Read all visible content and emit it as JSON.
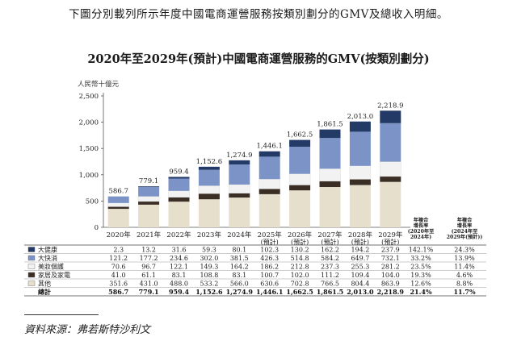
{
  "intro_text": "下圖分別載列所示年度中國電商運營服務按類別劃分的GMV及總收入明細。",
  "source_text": "資料來源：弗若斯特沙利文",
  "chart_data": {
    "type": "bar",
    "stacked": true,
    "title": "2020年至2029年(預計)中國電商運營服務的GMV(按類別劃分)",
    "ylabel": "人民幣十億元",
    "ylim": [
      0,
      2500
    ],
    "yticks": [
      "0",
      "500",
      "1,000",
      "1,500",
      "2,000",
      "2,500"
    ],
    "categories": [
      "2020年",
      "2021年",
      "2022年",
      "2023年",
      "2024年",
      "2025年",
      "2026年",
      "2027年",
      "2028年",
      "2029年"
    ],
    "category_sublabels": [
      "",
      "",
      "",
      "",
      "",
      "(預計)",
      "(預計)",
      "(預計)",
      "(預計)",
      "(預計)"
    ],
    "series": [
      {
        "name": "其他",
        "color": "#e6dfcc",
        "values": [
          351.6,
          431.0,
          488.0,
          533.2,
          566.0,
          630.6,
          702.8,
          766.5,
          804.4,
          863.9
        ],
        "labels": [
          "351.6",
          "431.0",
          "488.0",
          "533.2",
          "566.0",
          "630.6",
          "702.8",
          "766.5",
          "804.4",
          "863.9"
        ],
        "cagr_2020_2024": "12.6%",
        "cagr_2024_2029": "8.8%"
      },
      {
        "name": "家居及家電",
        "color": "#3b2f25",
        "values": [
          41.0,
          61.1,
          83.1,
          108.8,
          83.1,
          100.7,
          102.0,
          111.2,
          109.4,
          104.0
        ],
        "labels": [
          "41.0",
          "61.1",
          "83.1",
          "108.8",
          "83.1",
          "100.7",
          "102.0",
          "111.2",
          "109.4",
          "104.0"
        ],
        "cagr_2020_2024": "19.3%",
        "cagr_2024_2029": "4.6%"
      },
      {
        "name": "美妝個護",
        "color": "#f2f2f2",
        "values": [
          70.6,
          96.7,
          122.1,
          149.3,
          164.2,
          186.2,
          212.8,
          237.3,
          255.3,
          281.2
        ],
        "labels": [
          "70.6",
          "96.7",
          "122.1",
          "149.3",
          "164.2",
          "186.2",
          "212.8",
          "237.3",
          "255.3",
          "281.2"
        ],
        "cagr_2020_2024": "23.5%",
        "cagr_2024_2029": "11.4%"
      },
      {
        "name": "大快消",
        "color": "#7b93c6",
        "values": [
          121.2,
          177.2,
          234.6,
          302.0,
          381.5,
          426.3,
          514.8,
          584.2,
          649.7,
          732.1
        ],
        "labels": [
          "121.2",
          "177.2",
          "234.6",
          "302.0",
          "381.5",
          "426.3",
          "514.8",
          "584.2",
          "649.7",
          "732.1"
        ],
        "cagr_2020_2024": "33.2%",
        "cagr_2024_2029": "13.9%"
      },
      {
        "name": "大健康",
        "color": "#243a66",
        "values": [
          2.3,
          13.2,
          31.6,
          59.3,
          80.1,
          102.3,
          130.2,
          162.2,
          194.2,
          237.9
        ],
        "labels": [
          "2.3",
          "13.2",
          "31.6",
          "59.3",
          "80.1",
          "102.3",
          "130.2",
          "162.2",
          "194.2",
          "237.9"
        ],
        "cagr_2020_2024": "142.1%",
        "cagr_2024_2029": "24.3%"
      }
    ],
    "totals": [
      586.7,
      779.1,
      959.4,
      1152.6,
      1274.9,
      1446.1,
      1662.5,
      1861.5,
      2013.0,
      2218.9
    ],
    "total_labels": [
      "586.7",
      "779.1",
      "959.4",
      "1,152.6",
      "1,274.9",
      "1,446.1",
      "1,662.5",
      "1,861.5",
      "2,013.0",
      "2,218.9"
    ],
    "total_row_name": "總計",
    "total_cagr_2020_2024": "21.4%",
    "total_cagr_2024_2029": "11.7%",
    "cagr_headers": [
      [
        "年複合",
        "增長率",
        "(2020年至",
        "2024年)"
      ],
      [
        "年複合",
        "增長率",
        "(2024年至",
        "2029年(預計))"
      ]
    ],
    "grid": false,
    "legend": "table-below"
  }
}
